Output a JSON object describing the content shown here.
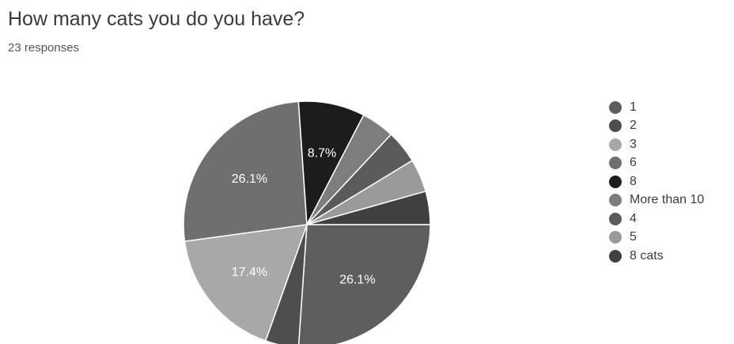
{
  "header": {
    "title": "How many cats you do you have?",
    "subtitle": "23 responses"
  },
  "chart_data": {
    "type": "pie",
    "title": "How many cats you do you have?",
    "subtitle": "23 responses",
    "slices": [
      {
        "label": "1",
        "value": 6,
        "percent_label": "26.1%",
        "color": "#5e5e5e"
      },
      {
        "label": "2",
        "value": 1,
        "percent_label": "",
        "color": "#4e4e4e"
      },
      {
        "label": "3",
        "value": 4,
        "percent_label": "17.4%",
        "color": "#a8a8a8"
      },
      {
        "label": "6",
        "value": 6,
        "percent_label": "26.1%",
        "color": "#6f6f6f"
      },
      {
        "label": "8",
        "value": 2,
        "percent_label": "8.7%",
        "color": "#1c1c1c"
      },
      {
        "label": "More than 10",
        "value": 1,
        "percent_label": "",
        "color": "#7d7d7d"
      },
      {
        "label": "4",
        "value": 1,
        "percent_label": "",
        "color": "#5b5b5b"
      },
      {
        "label": "5",
        "value": 1,
        "percent_label": "",
        "color": "#9a9a9a"
      },
      {
        "label": "8 cats",
        "value": 1,
        "percent_label": "",
        "color": "#404040"
      }
    ],
    "legend_position": "right"
  }
}
